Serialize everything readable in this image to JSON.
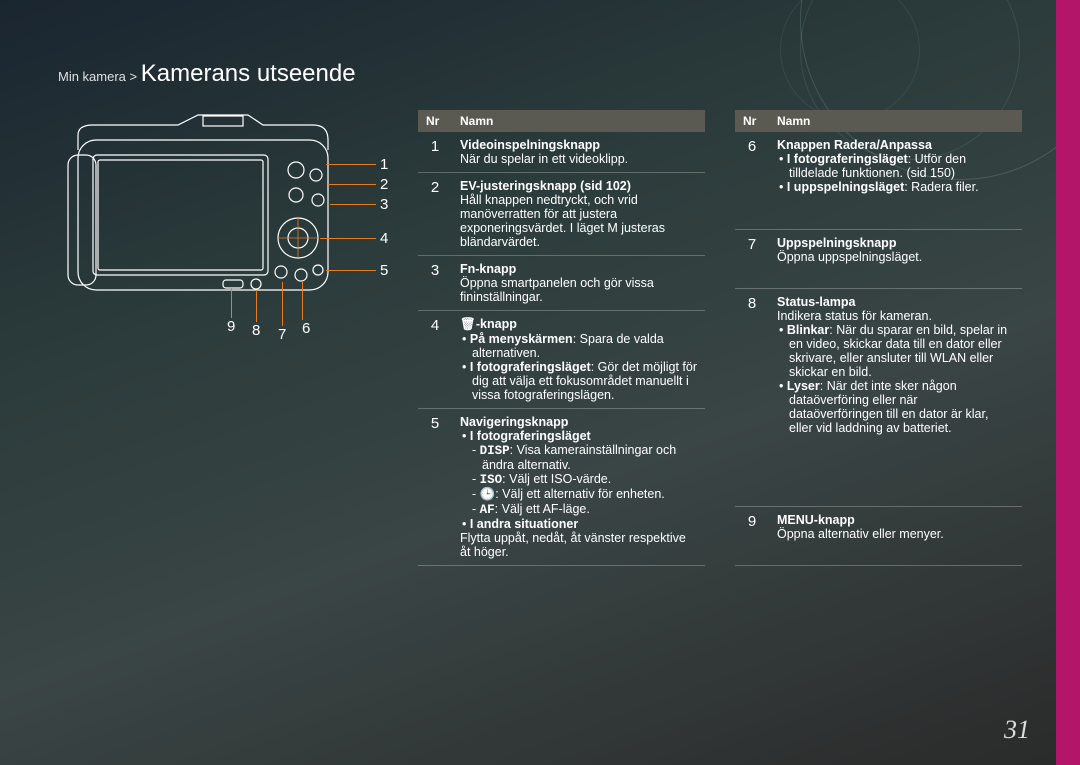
{
  "breadcrumb": {
    "parent": "Min kamera",
    "sep": ">",
    "title": "Kamerans utseende"
  },
  "page_number": "31",
  "callouts_right": [
    "1",
    "2",
    "3",
    "4",
    "5"
  ],
  "callouts_bottom": [
    "9",
    "8",
    "7",
    "6"
  ],
  "table_headers": {
    "nr": "Nr",
    "name": "Namn"
  },
  "table1": [
    {
      "nr": "1",
      "title": "Videoinspelningsknapp",
      "lines": [
        "När du spelar in ett videoklipp."
      ]
    },
    {
      "nr": "2",
      "title": "EV-justeringsknapp (sid 102)",
      "lines": [
        "Håll knappen nedtryckt, och vrid manöverratten för att justera exponeringsvärdet. I läget M justeras bländarvärdet."
      ]
    },
    {
      "nr": "3",
      "title": "Fn-knapp",
      "lines": [
        "Öppna smartpanelen och gör vissa fininställningar."
      ]
    },
    {
      "nr": "4",
      "title": "🗑-knapp",
      "lines": [
        "• På menyskärmen: Spara de valda alternativen.",
        "• I fotograferingsläget: Gör det möjligt för dig att välja ett fokusområdet manuellt i vissa fotograferingslägen."
      ]
    },
    {
      "nr": "5",
      "title": "Navigeringsknapp",
      "lines": [
        "• I fotograferingsläget",
        "- DISP: Visa kamerainställningar och ändra alternativ.",
        "- ISO: Välj ett ISO-värde.",
        "- 🕒: Välj ett alternativ för enheten.",
        "- AF: Välj ett AF-läge.",
        "• I andra situationer",
        "Flytta uppåt, nedåt, åt vänster respektive åt höger."
      ]
    }
  ],
  "table2": [
    {
      "nr": "6",
      "title": "Knappen Radera/Anpassa",
      "lines": [
        "• I fotograferingsläget: Utför den tilldelade funktionen. (sid 150)",
        "• I uppspelningsläget: Radera filer."
      ]
    },
    {
      "nr": "7",
      "title": "Uppspelningsknapp",
      "lines": [
        "Öppna uppspelningsläget."
      ]
    },
    {
      "nr": "8",
      "title": "Status-lampa",
      "lines": [
        "Indikera status för kameran.",
        "• Blinkar: När du sparar en bild, spelar in en video, skickar data till en dator eller skrivare, eller ansluter till WLAN eller skickar en bild.",
        "• Lyser: När det inte sker någon dataöverföring eller när dataöverföringen till en dator är klar, eller vid laddning av batteriet."
      ]
    },
    {
      "nr": "9",
      "title": "MENU-knapp",
      "lines": [
        "Öppna alternativ eller menyer."
      ]
    }
  ]
}
